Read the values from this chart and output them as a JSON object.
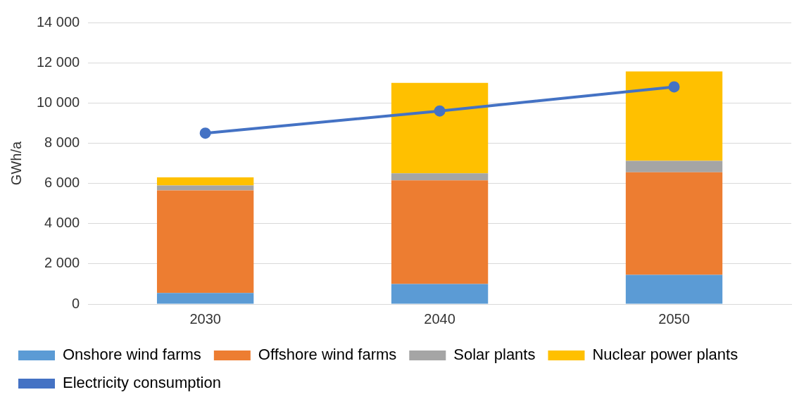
{
  "chart_data": {
    "type": "bar",
    "stacked": true,
    "ylabel": "GWh/a",
    "categories": [
      "2030",
      "2040",
      "2050"
    ],
    "series": [
      {
        "name": "Onshore wind farms",
        "color": "#5b9bd5",
        "values": [
          550,
          1000,
          1450
        ]
      },
      {
        "name": "Offshore wind farms",
        "color": "#ed7d31",
        "values": [
          5100,
          5150,
          5100
        ]
      },
      {
        "name": "Solar plants",
        "color": "#a5a5a5",
        "values": [
          250,
          350,
          570
        ]
      },
      {
        "name": "Nuclear power plants",
        "color": "#ffc000",
        "values": [
          400,
          4500,
          4450
        ]
      },
      {
        "name": "Electricity consumption",
        "type": "line",
        "color": "#4472c4",
        "values": [
          8500,
          9600,
          10800
        ]
      }
    ],
    "ylim": [
      0,
      14000
    ],
    "yticks": [
      {
        "value": 0,
        "label": "0"
      },
      {
        "value": 2000,
        "label": "2 000"
      },
      {
        "value": 4000,
        "label": "4 000"
      },
      {
        "value": 6000,
        "label": "6 000"
      },
      {
        "value": 8000,
        "label": "8 000"
      },
      {
        "value": 10000,
        "label": "10 000"
      },
      {
        "value": 12000,
        "label": "12 000"
      },
      {
        "value": 14000,
        "label": "14 000"
      }
    ],
    "grid": "y",
    "legend": "bottom",
    "marker": "circle"
  }
}
